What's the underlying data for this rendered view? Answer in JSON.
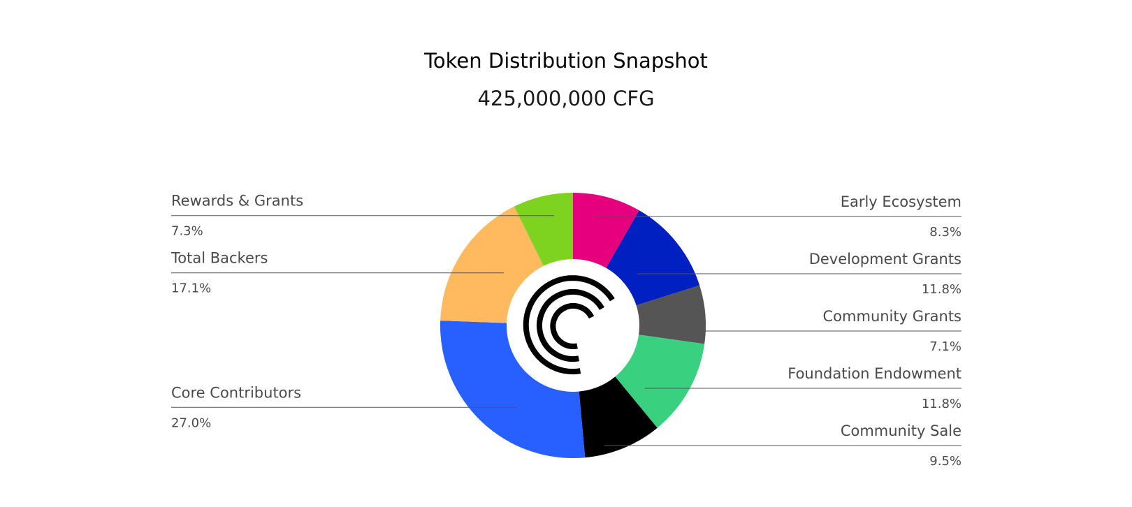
{
  "chart_data": {
    "type": "pie",
    "title": "Token Distribution Snapshot",
    "subtitle": "425,000,000 CFG",
    "donut": true,
    "center_icon": "centrifuge-logo-icon",
    "slices": [
      {
        "label": "Early Ecosystem",
        "value": 8.3,
        "value_label": "8.3%",
        "color": "#e6007e",
        "side": "right"
      },
      {
        "label": "Development Grants",
        "value": 11.8,
        "value_label": "11.8%",
        "color": "#0020c2",
        "side": "right"
      },
      {
        "label": "Community Grants",
        "value": 7.1,
        "value_label": "7.1%",
        "color": "#555555",
        "side": "right"
      },
      {
        "label": "Foundation Endowment",
        "value": 11.8,
        "value_label": "11.8%",
        "color": "#39d07f",
        "side": "right"
      },
      {
        "label": "Community Sale",
        "value": 9.5,
        "value_label": "9.5%",
        "color": "#000000",
        "side": "right"
      },
      {
        "label": "Core Contributors",
        "value": 27.0,
        "value_label": "27.0%",
        "color": "#2760ff",
        "side": "left"
      },
      {
        "label": "Total Backers",
        "value": 17.1,
        "value_label": "17.1%",
        "color": "#ffb95e",
        "side": "left"
      },
      {
        "label": "Rewards & Grants",
        "value": 7.3,
        "value_label": "7.3%",
        "color": "#7ed321",
        "side": "left"
      }
    ]
  }
}
